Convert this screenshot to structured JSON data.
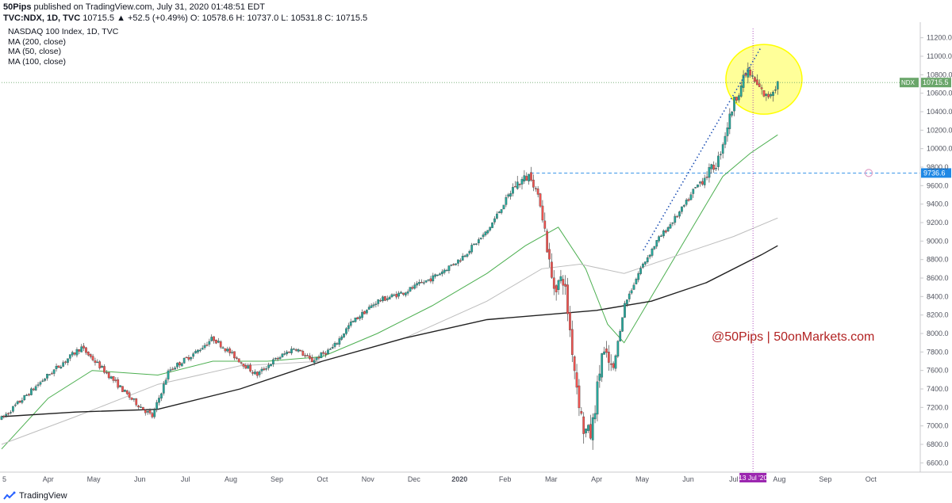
{
  "header": {
    "publisher": "50Pips",
    "published_text": " published on TradingView.com, July 31, 2020 01:48:51 EDT",
    "ticker_line": "TVC:NDX, 1D, TVC",
    "ticker_values": "10715.5 ▲ +52.5 (+0.49%) O: 10578.6 H: 10737.0 L: 10531.8 C: 10715.5"
  },
  "legend": {
    "title": "NASDAQ 100 Index, 1D, TVC",
    "ma200": "MA (200, close)",
    "ma50": "MA (50, close)",
    "ma100": "MA (100, close)"
  },
  "footer": {
    "brand": "TradingView"
  },
  "colors": {
    "up": "#26a69a",
    "down": "#ef5350",
    "ma50": "#4caf50",
    "ma100": "#bdbdbd",
    "ma200": "#212121",
    "trend": "#1e50b4",
    "last_price": "#6aa66a",
    "support": "#1e88e5",
    "highlight": "#ffff00",
    "date_marker": "#9c27b0",
    "annotation": "#b22222"
  },
  "chart_data": {
    "type": "candlestick",
    "title": "NASDAQ 100 Index, 1D, TVC",
    "ylim": [
      6500,
      11300
    ],
    "y_ticks": [
      "11200.0",
      "11000.0",
      "10800.0",
      "10600.0",
      "10400.0",
      "10200.0",
      "10000.0",
      "9800.0",
      "9600.0",
      "9400.0",
      "9200.0",
      "9000.0",
      "8800.0",
      "8600.0",
      "8400.0",
      "8200.0",
      "8000.0",
      "7800.0",
      "7600.0",
      "7400.0",
      "7200.0",
      "7000.0",
      "6800.0",
      "6600.0"
    ],
    "x_labels": [
      "Apr",
      "May",
      "Jun",
      "Jul",
      "Aug",
      "Sep",
      "Oct",
      "Nov",
      "Dec",
      "2020",
      "Feb",
      "Mar",
      "Apr",
      "May",
      "Jun",
      "Jul",
      "Aug",
      "Sep",
      "Oct"
    ],
    "x_label_values": [
      2019.25,
      2019.333,
      2019.417,
      2019.5,
      2019.583,
      2019.667,
      2019.75,
      2019.833,
      2019.917,
      2020.0,
      2020.083,
      2020.167,
      2020.25,
      2020.333,
      2020.417,
      2020.5,
      2020.583,
      2020.667,
      2020.75
    ],
    "x_start_label": "5",
    "xlim": [
      2019.165,
      2020.84
    ],
    "price_path": [
      [
        2019.165,
        7080
      ],
      [
        2019.25,
        7550
      ],
      [
        2019.31,
        7850
      ],
      [
        2019.36,
        7550
      ],
      [
        2019.4,
        7300
      ],
      [
        2019.44,
        7100
      ],
      [
        2019.47,
        7600
      ],
      [
        2019.52,
        7800
      ],
      [
        2019.55,
        7950
      ],
      [
        2019.59,
        7750
      ],
      [
        2019.63,
        7550
      ],
      [
        2019.66,
        7700
      ],
      [
        2019.7,
        7850
      ],
      [
        2019.73,
        7700
      ],
      [
        2019.77,
        7850
      ],
      [
        2019.8,
        8100
      ],
      [
        2019.85,
        8350
      ],
      [
        2019.9,
        8450
      ],
      [
        2019.95,
        8600
      ],
      [
        2020.0,
        8800
      ],
      [
        2020.05,
        9100
      ],
      [
        2020.1,
        9600
      ],
      [
        2020.13,
        9720
      ],
      [
        2020.15,
        9350
      ],
      [
        2020.17,
        8500
      ],
      [
        2020.19,
        8600
      ],
      [
        2020.21,
        7600
      ],
      [
        2020.225,
        6970
      ],
      [
        2020.24,
        6900
      ],
      [
        2020.26,
        7800
      ],
      [
        2020.28,
        7600
      ],
      [
        2020.3,
        8300
      ],
      [
        2020.33,
        8700
      ],
      [
        2020.36,
        9000
      ],
      [
        2020.4,
        9300
      ],
      [
        2020.44,
        9650
      ],
      [
        2020.47,
        9850
      ],
      [
        2020.5,
        10500
      ],
      [
        2020.525,
        10850
      ],
      [
        2020.54,
        10700
      ],
      [
        2020.56,
        10550
      ],
      [
        2020.58,
        10715
      ]
    ],
    "series": [
      {
        "name": "MA (50, close)",
        "x": [
          2019.165,
          2019.25,
          2019.33,
          2019.45,
          2019.55,
          2019.65,
          2019.75,
          2019.85,
          2019.95,
          2020.05,
          2020.12,
          2020.18,
          2020.23,
          2020.27,
          2020.3,
          2020.34,
          2020.38,
          2020.43,
          2020.48,
          2020.53,
          2020.58
        ],
        "values": [
          6750,
          7300,
          7600,
          7550,
          7700,
          7700,
          7750,
          8000,
          8300,
          8650,
          8950,
          9150,
          8700,
          8100,
          7900,
          8300,
          8700,
          9200,
          9700,
          9950,
          10150
        ]
      },
      {
        "name": "MA (100, close)",
        "x": [
          2019.165,
          2019.3,
          2019.45,
          2019.6,
          2019.75,
          2019.9,
          2020.05,
          2020.15,
          2020.22,
          2020.3,
          2020.4,
          2020.5,
          2020.58
        ],
        "values": [
          6800,
          7100,
          7450,
          7650,
          7700,
          7950,
          8350,
          8700,
          8750,
          8650,
          8850,
          9050,
          9250
        ]
      },
      {
        "name": "MA (200, close)",
        "x": [
          2019.165,
          2019.3,
          2019.45,
          2019.6,
          2019.75,
          2019.9,
          2020.05,
          2020.15,
          2020.25,
          2020.35,
          2020.45,
          2020.55,
          2020.58
        ],
        "values": [
          7100,
          7150,
          7180,
          7400,
          7700,
          7950,
          8150,
          8200,
          8250,
          8350,
          8550,
          8850,
          8950
        ]
      }
    ],
    "last_price": {
      "label": "NDX",
      "value": "10715.5"
    },
    "support_level": {
      "value": "9736.6"
    },
    "trendline": [
      [
        2020.335,
        8900
      ],
      [
        2020.55,
        11100
      ]
    ],
    "support_line_start_x": 2020.13,
    "highlight_center": [
      2020.555,
      10750
    ],
    "date_marker": {
      "label": "13 Jul '20",
      "x": 2020.535
    },
    "annotation": "@50Pips  |  50onMarkets.com"
  }
}
